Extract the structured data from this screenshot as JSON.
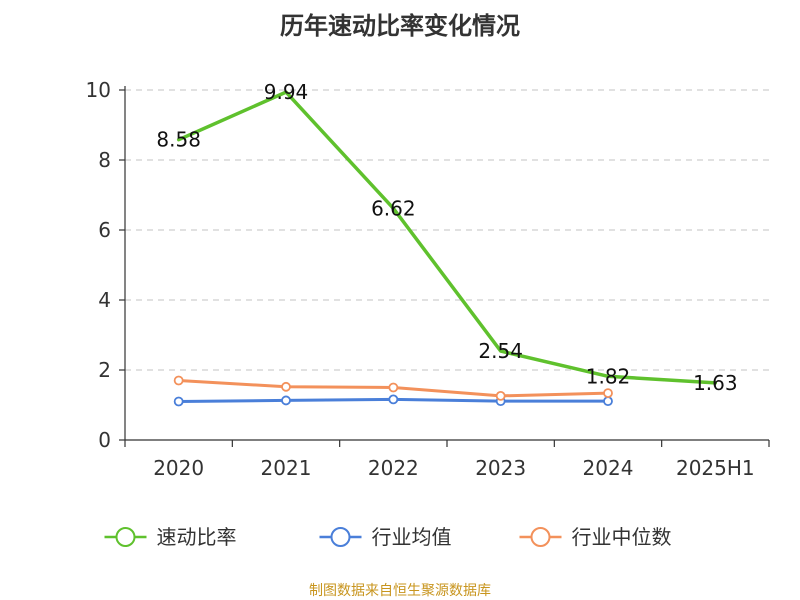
{
  "chart_data": {
    "type": "line",
    "title": "历年速动比率变化情况",
    "categories": [
      "2020",
      "2021",
      "2022",
      "2023",
      "2024",
      "2025H1"
    ],
    "ylim": [
      0,
      10
    ],
    "yticks": [
      0,
      2,
      4,
      6,
      8,
      10
    ],
    "ytick_labels": [
      "0",
      "2",
      "4",
      "6",
      "8",
      "10"
    ],
    "grid": true,
    "legend_position": "bottom",
    "series": [
      {
        "name": "速动比率",
        "color": "#5fc12d",
        "values": [
          8.58,
          9.94,
          6.62,
          2.54,
          1.82,
          1.63
        ],
        "labels": [
          "8.58",
          "9.94",
          "6.62",
          "2.54",
          "1.82",
          "1.63"
        ],
        "show_markers": false
      },
      {
        "name": "行业均值",
        "color": "#4a7fd9",
        "values": [
          1.1,
          1.13,
          1.16,
          1.11,
          1.11,
          null
        ],
        "show_markers": true
      },
      {
        "name": "行业中位数",
        "color": "#f3915b",
        "values": [
          1.7,
          1.52,
          1.5,
          1.26,
          1.34,
          null
        ],
        "show_markers": true
      }
    ],
    "source": "制图数据来自恒生聚源数据库"
  }
}
